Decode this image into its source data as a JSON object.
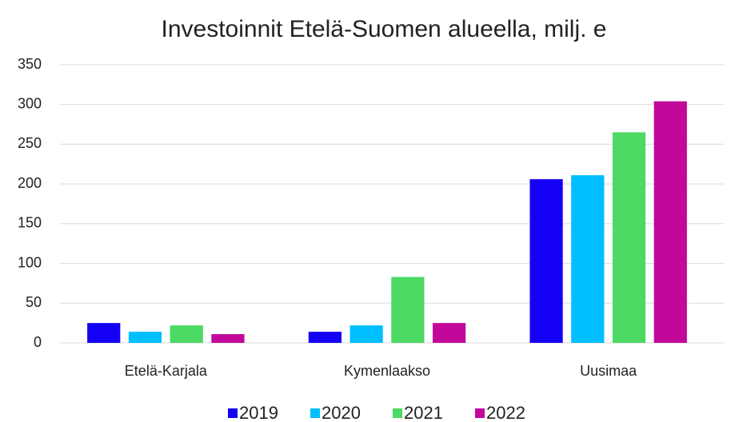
{
  "chart_data": {
    "type": "bar",
    "title": "Investoinnit Etelä-Suomen alueella, milj. e",
    "categories": [
      "Etelä-Karjala",
      "Kymenlaakso",
      "Uusimaa"
    ],
    "series": [
      {
        "name": "2019",
        "color": "#1400f5",
        "values": [
          25,
          14,
          206
        ]
      },
      {
        "name": "2020",
        "color": "#00bfff",
        "values": [
          14,
          22,
          211
        ]
      },
      {
        "name": "2021",
        "color": "#4cd964",
        "values": [
          22,
          83,
          265
        ]
      },
      {
        "name": "2022",
        "color": "#c1089b",
        "values": [
          11,
          25,
          304
        ]
      }
    ],
    "ylim": [
      0,
      350
    ],
    "yticks": [
      0,
      50,
      100,
      150,
      200,
      250,
      300,
      350
    ],
    "grid": true,
    "legend": "bottom"
  }
}
